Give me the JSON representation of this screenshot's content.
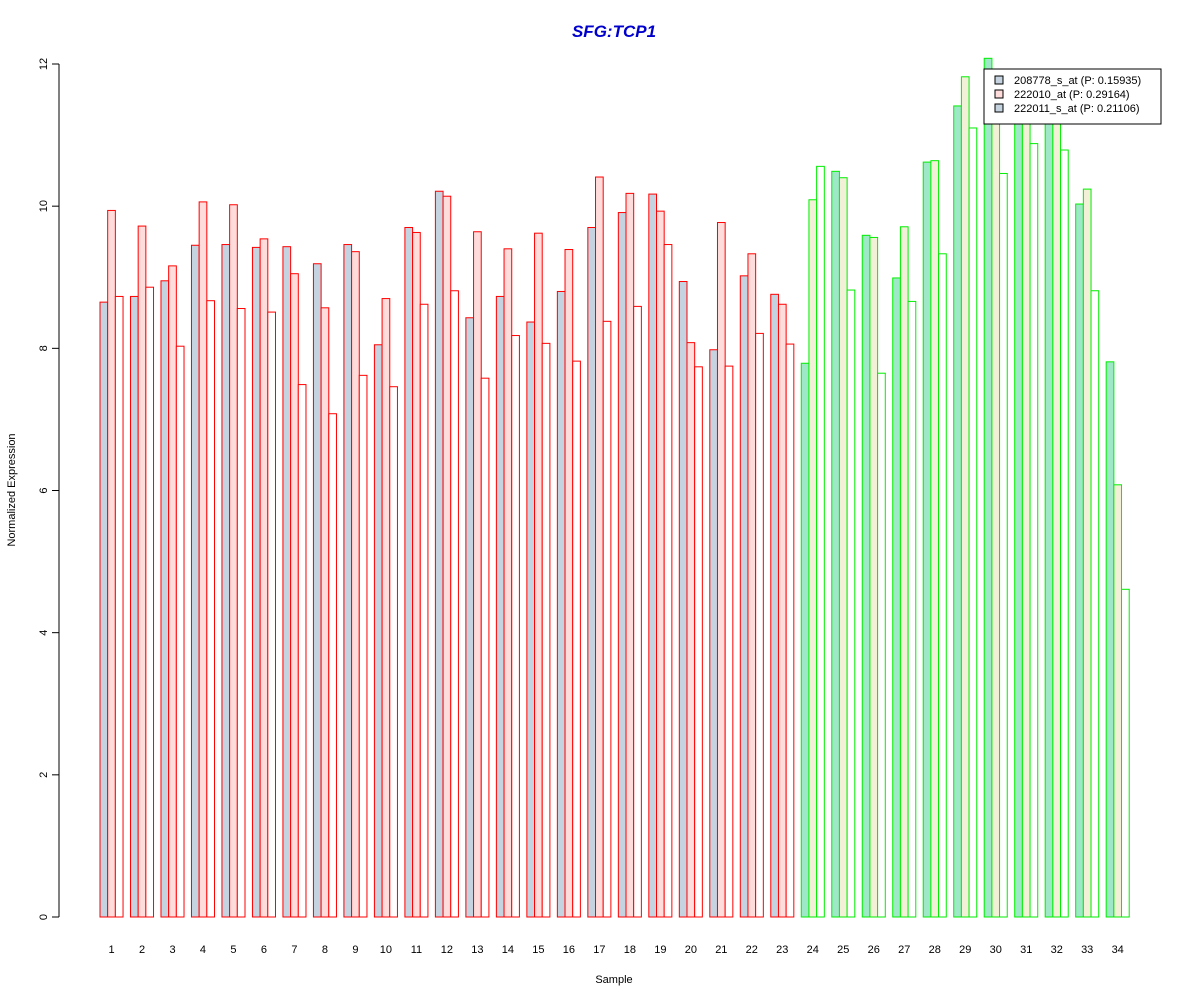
{
  "chart_data": {
    "type": "bar",
    "title": "SFG:TCP1",
    "xlabel": "Sample",
    "ylabel": "Normalized Expression",
    "ylim": [
      0,
      12
    ],
    "yticks": [
      0,
      2,
      4,
      6,
      8,
      10,
      12
    ],
    "categories": [
      "1",
      "2",
      "3",
      "4",
      "5",
      "6",
      "7",
      "8",
      "9",
      "10",
      "11",
      "12",
      "13",
      "14",
      "15",
      "16",
      "17",
      "18",
      "19",
      "20",
      "21",
      "22",
      "23",
      "24",
      "25",
      "26",
      "27",
      "28",
      "29",
      "30",
      "31",
      "32",
      "33",
      "34"
    ],
    "group_split_after": 23,
    "legend_position": "top-right",
    "grid": false,
    "series": [
      {
        "name": "208778_s_at (P: 0.15935)",
        "values": [
          8.65,
          8.73,
          8.95,
          9.45,
          9.46,
          9.42,
          9.43,
          9.19,
          9.46,
          8.05,
          9.7,
          10.21,
          8.43,
          8.73,
          8.37,
          8.8,
          9.7,
          9.91,
          10.17,
          8.94,
          7.98,
          9.02,
          8.76,
          7.79,
          10.49,
          9.59,
          8.99,
          10.62,
          11.41,
          12.08,
          11.34,
          11.32,
          10.03,
          7.81
        ]
      },
      {
        "name": "222010_at (P: 0.29164)",
        "values": [
          9.94,
          9.72,
          9.16,
          10.06,
          10.02,
          9.54,
          9.05,
          8.57,
          9.36,
          8.7,
          9.63,
          10.14,
          9.64,
          9.4,
          9.62,
          9.39,
          10.41,
          10.18,
          9.93,
          8.08,
          9.77,
          9.33,
          8.62,
          10.09,
          10.4,
          9.56,
          9.71,
          10.64,
          11.82,
          11.73,
          11.42,
          11.51,
          10.24,
          6.08
        ]
      },
      {
        "name": "222011_s_at (P: 0.21106)",
        "values": [
          8.73,
          8.86,
          8.03,
          8.67,
          8.56,
          8.51,
          7.49,
          7.08,
          7.62,
          7.46,
          8.62,
          8.81,
          7.58,
          8.18,
          8.07,
          7.82,
          8.38,
          8.59,
          9.46,
          7.74,
          7.75,
          8.21,
          8.06,
          10.56,
          8.82,
          7.65,
          8.66,
          9.33,
          11.1,
          10.46,
          10.88,
          10.79,
          8.81,
          4.61
        ]
      }
    ],
    "colors": {
      "group1_border": "#ff0000",
      "group2_border": "#00ee00",
      "title": "#0000cc",
      "group1_fills": [
        "#c5d3e0",
        "#ffdcdc",
        "#ffffff"
      ],
      "group2_fills": [
        "#9ee8c8",
        "#f3f0d8",
        "#ffffff"
      ],
      "legend_fills": [
        "#c5d3e0",
        "#ffdcdc",
        "#c5d3e0"
      ]
    }
  }
}
